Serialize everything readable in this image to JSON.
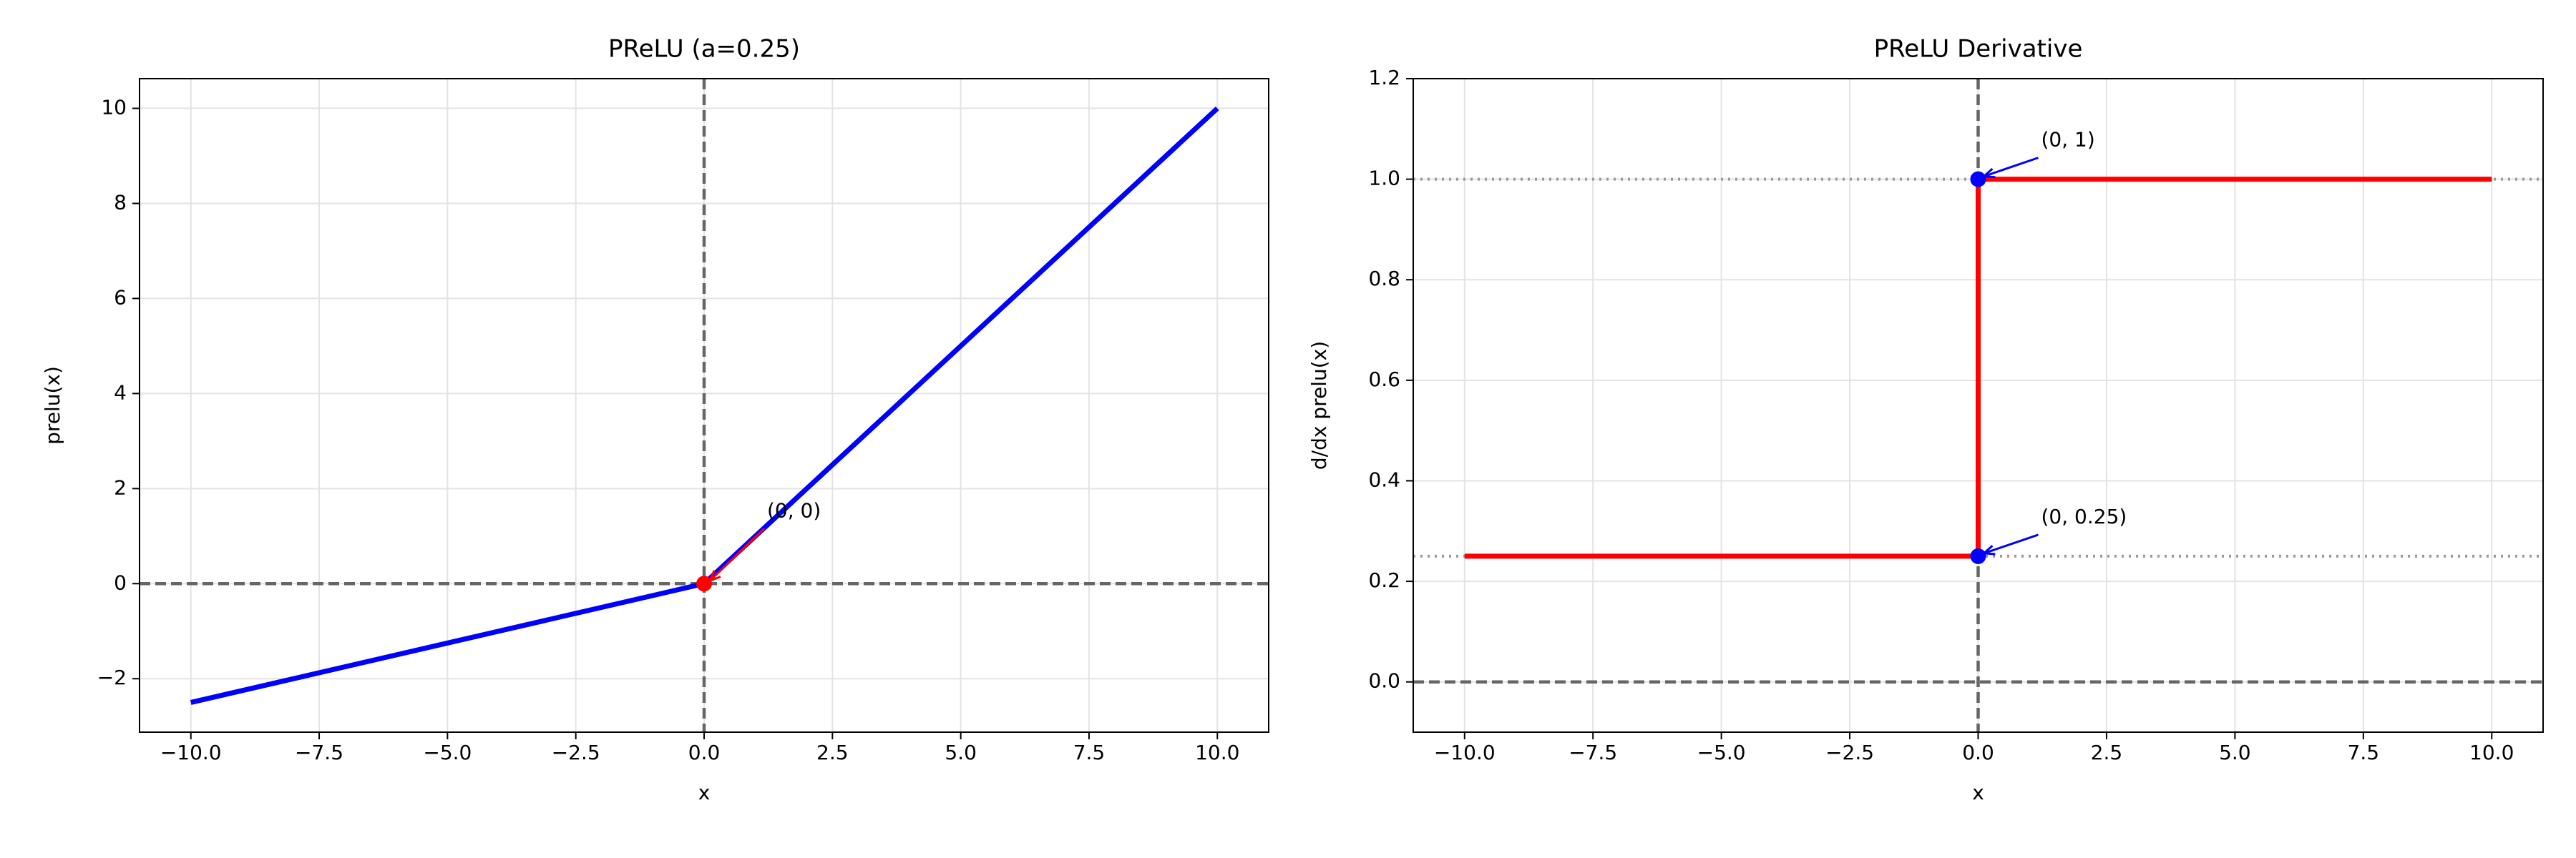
{
  "chart_data": [
    {
      "type": "line",
      "title": "PReLU (a=0.25)",
      "xlabel": "x",
      "ylabel": "prelu(x)",
      "x": [
        -10,
        0,
        10
      ],
      "values": [
        -2.5,
        0,
        10
      ],
      "color": "#0000ff",
      "xlim": [
        -11,
        11
      ],
      "ylim": [
        -3.125,
        10.625
      ],
      "xticks": [
        {
          "value": -10,
          "label": "−10.0"
        },
        {
          "value": -7.5,
          "label": "−7.5"
        },
        {
          "value": -5,
          "label": "−5.0"
        },
        {
          "value": -2.5,
          "label": "−2.5"
        },
        {
          "value": 0,
          "label": "0.0"
        },
        {
          "value": 2.5,
          "label": "2.5"
        },
        {
          "value": 5,
          "label": "5.0"
        },
        {
          "value": 7.5,
          "label": "7.5"
        },
        {
          "value": 10,
          "label": "10.0"
        }
      ],
      "yticks": [
        {
          "value": -2,
          "label": "−2"
        },
        0,
        2,
        4,
        6,
        8,
        10
      ],
      "grid": true,
      "ref_lines": [
        {
          "axis": "x",
          "value": 0,
          "style": "dashed"
        },
        {
          "axis": "y",
          "value": 0,
          "style": "dashed"
        }
      ],
      "annotations": [
        {
          "text": "(0, 0)",
          "x": 0,
          "y": 0,
          "color": "#ff0000"
        }
      ]
    },
    {
      "type": "line",
      "title": "PReLU Derivative",
      "xlabel": "x",
      "ylabel": "d/dx prelu(x)",
      "x": [
        -10,
        0,
        0,
        10
      ],
      "values": [
        0.25,
        0.25,
        1,
        1
      ],
      "color": "#ff0000",
      "xlim": [
        -11,
        11
      ],
      "ylim": [
        -0.1,
        1.2
      ],
      "xticks": [
        {
          "value": -10,
          "label": "−10.0"
        },
        {
          "value": -7.5,
          "label": "−7.5"
        },
        {
          "value": -5,
          "label": "−5.0"
        },
        {
          "value": -2.5,
          "label": "−2.5"
        },
        {
          "value": 0,
          "label": "0.0"
        },
        {
          "value": 2.5,
          "label": "2.5"
        },
        {
          "value": 5,
          "label": "5.0"
        },
        {
          "value": 7.5,
          "label": "7.5"
        },
        {
          "value": 10,
          "label": "10.0"
        }
      ],
      "yticks": [
        {
          "value": 0,
          "label": "0.0"
        },
        {
          "value": 0.2,
          "label": "0.2"
        },
        {
          "value": 0.4,
          "label": "0.4"
        },
        {
          "value": 0.6,
          "label": "0.6"
        },
        {
          "value": 0.8,
          "label": "0.8"
        },
        {
          "value": 1,
          "label": "1.0"
        },
        {
          "value": 1.2,
          "label": "1.2"
        }
      ],
      "grid": true,
      "ref_lines": [
        {
          "axis": "x",
          "value": 0,
          "style": "dashed"
        },
        {
          "axis": "y",
          "value": 0,
          "style": "dashed"
        },
        {
          "axis": "y",
          "value": 1,
          "style": "dotted"
        },
        {
          "axis": "y",
          "value": 0.25,
          "style": "dotted"
        }
      ],
      "annotations": [
        {
          "text": "(0, 1)",
          "x": 0,
          "y": 1,
          "color": "#0000ff"
        },
        {
          "text": "(0, 0.25)",
          "x": 0,
          "y": 0.25,
          "color": "#0000ff"
        }
      ]
    }
  ]
}
